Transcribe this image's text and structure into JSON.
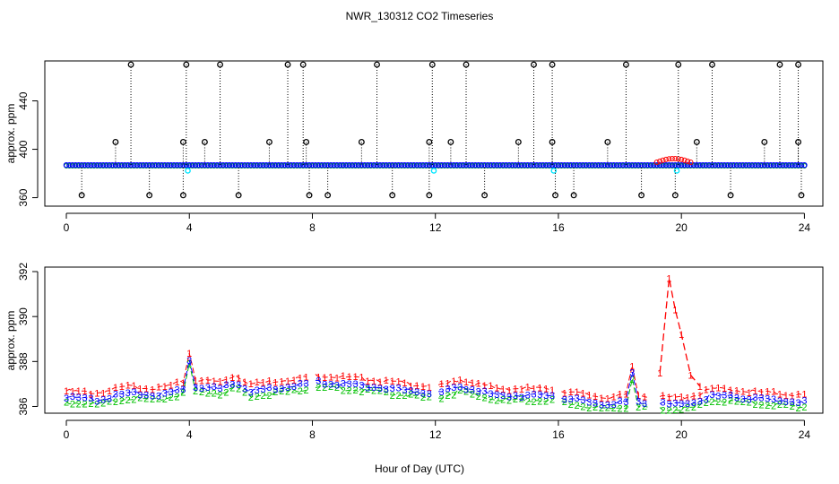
{
  "chart_data": {
    "title": "NWR_130312  CO2 Timeseries",
    "xlabel": "Hour of Day (UTC)",
    "colors": {
      "series1": "#ff0000",
      "series2": "#00c000",
      "series3": "#0000ff",
      "flag": "#00e5ff",
      "outlier": "#000000"
    },
    "panels": [
      {
        "type": "scatter",
        "ylabel": "approx. ppm",
        "xlim": [
          -0.7,
          24.6
        ],
        "ylim": [
          353,
          473
        ],
        "xticks": [
          0,
          4,
          8,
          12,
          16,
          20,
          24
        ],
        "yticks": [
          360,
          400,
          440
        ],
        "baseline": 386.3,
        "low_outliers": [
          0.5,
          2.7,
          3.8,
          5.6,
          7.9,
          8.5,
          10.6,
          11.8,
          13.6,
          15.9,
          16.5,
          18.7,
          19.8,
          21.6,
          23.9
        ],
        "high_outliers": [
          2.1,
          3.9,
          5.0,
          7.2,
          7.7,
          10.1,
          11.9,
          13.0,
          15.2,
          15.8,
          18.2,
          19.9,
          21.0,
          23.2,
          23.8
        ],
        "mid_outliers": [
          1.6,
          3.8,
          4.5,
          6.6,
          7.8,
          9.6,
          11.8,
          12.5,
          14.7,
          15.8,
          17.6,
          20.5,
          22.7,
          23.8
        ],
        "bad_flag_hours": [
          3.95,
          11.95,
          15.85,
          19.85
        ],
        "high_value": 470,
        "low_value": 362,
        "mid_value": 406
      },
      {
        "type": "line",
        "ylabel": "approx. ppm",
        "xlim": [
          -0.7,
          24.6
        ],
        "ylim": [
          385.7,
          392.2
        ],
        "xticks": [
          0,
          4,
          8,
          12,
          16,
          20,
          24
        ],
        "yticks": [
          386,
          388,
          390,
          392
        ],
        "series": [
          {
            "name": "1",
            "label_char": "1",
            "offset": 0.3
          },
          {
            "name": "2",
            "label_char": "2",
            "offset": -0.22
          },
          {
            "name": "3",
            "label_char": "3",
            "offset": 0.0
          }
        ],
        "gaps": [
          [
            7.85,
            8.05
          ],
          [
            11.85,
            12.05
          ],
          [
            15.85,
            16.05
          ],
          [
            19.0,
            19.25
          ]
        ],
        "keypoints": [
          [
            0.0,
            386.4
          ],
          [
            1.0,
            386.3
          ],
          [
            2.0,
            386.6
          ],
          [
            3.0,
            386.5
          ],
          [
            3.8,
            386.8
          ],
          [
            4.0,
            388.1
          ],
          [
            4.2,
            386.9
          ],
          [
            5.0,
            386.8
          ],
          [
            5.5,
            387.1
          ],
          [
            6.0,
            386.7
          ],
          [
            7.8,
            387.0
          ],
          [
            8.1,
            387.1
          ],
          [
            10.0,
            386.9
          ],
          [
            11.8,
            386.6
          ],
          [
            12.1,
            386.6
          ],
          [
            12.8,
            386.9
          ],
          [
            14.0,
            386.5
          ],
          [
            15.8,
            386.5
          ],
          [
            16.1,
            386.4
          ],
          [
            17.5,
            386.1
          ],
          [
            18.2,
            386.2
          ],
          [
            18.4,
            387.5
          ],
          [
            18.6,
            386.2
          ],
          [
            19.6,
            386.1
          ],
          [
            20.0,
            386.1
          ],
          [
            20.5,
            386.2
          ],
          [
            21.0,
            386.5
          ],
          [
            22.0,
            386.4
          ],
          [
            23.0,
            386.3
          ],
          [
            23.9,
            386.2
          ]
        ],
        "red_spike": [
          [
            19.3,
            387.5
          ],
          [
            19.6,
            391.7
          ],
          [
            19.8,
            390.3
          ],
          [
            20.0,
            389.2
          ],
          [
            20.3,
            387.4
          ],
          [
            20.6,
            386.9
          ]
        ]
      }
    ]
  }
}
